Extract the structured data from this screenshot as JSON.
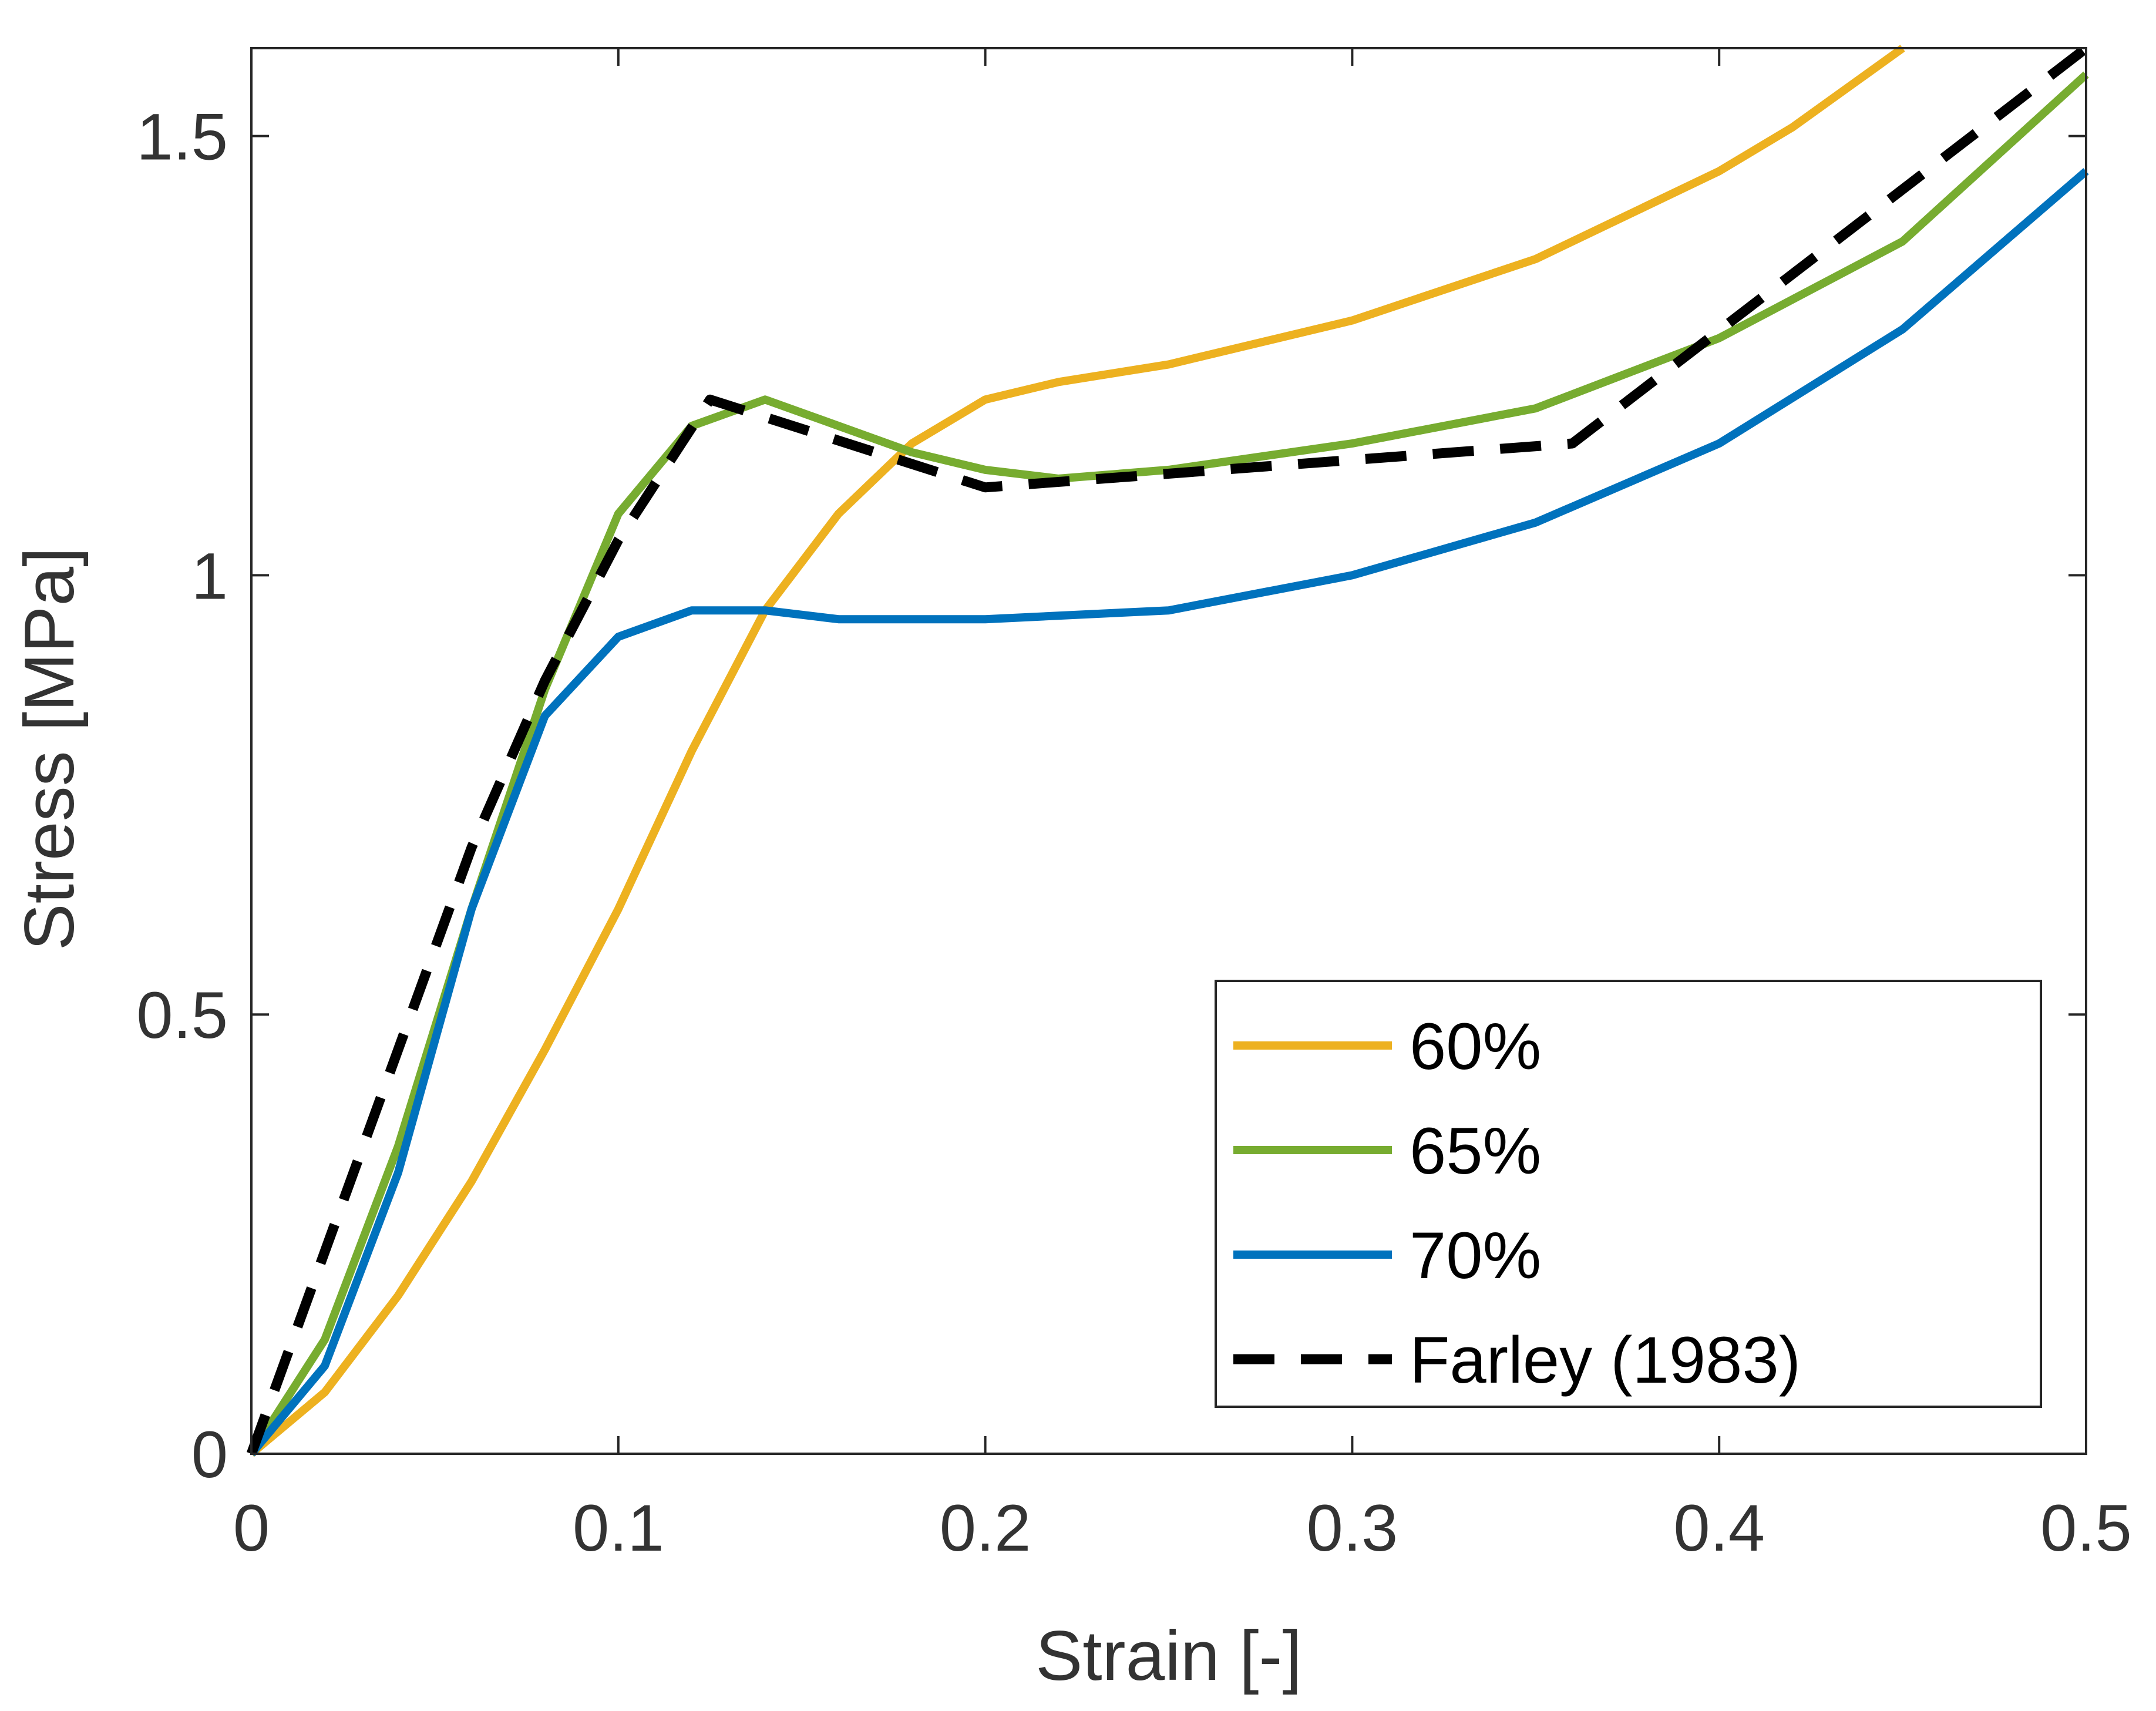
{
  "chart_data": {
    "type": "line",
    "title": "",
    "xlabel": "Strain [-]",
    "ylabel": "Stress [MPa]",
    "xlim": [
      0,
      0.5
    ],
    "ylim": [
      0,
      1.6
    ],
    "xticks": [
      0,
      0.1,
      0.2,
      0.3,
      0.4,
      0.5
    ],
    "xtick_labels": [
      "0",
      "0.1",
      "0.2",
      "0.3",
      "0.4",
      "0.5"
    ],
    "yticks": [
      0,
      0.5,
      1,
      1.5
    ],
    "ytick_labels": [
      "0",
      "0.5",
      "1",
      "1.5"
    ],
    "grid": false,
    "legend_position": "bottom-right",
    "series": [
      {
        "name": "60%",
        "color": "#EDB120",
        "style": "solid",
        "points": [
          [
            0,
            0
          ],
          [
            0.02,
            0.07
          ],
          [
            0.04,
            0.18
          ],
          [
            0.06,
            0.31
          ],
          [
            0.08,
            0.46
          ],
          [
            0.1,
            0.62
          ],
          [
            0.12,
            0.8
          ],
          [
            0.14,
            0.96
          ],
          [
            0.16,
            1.07
          ],
          [
            0.18,
            1.15
          ],
          [
            0.2,
            1.2
          ],
          [
            0.22,
            1.22
          ],
          [
            0.25,
            1.24
          ],
          [
            0.3,
            1.29
          ],
          [
            0.35,
            1.36
          ],
          [
            0.4,
            1.46
          ],
          [
            0.42,
            1.51
          ],
          [
            0.45,
            1.6
          ]
        ]
      },
      {
        "name": "65%",
        "color": "#77AC30",
        "style": "solid",
        "points": [
          [
            0,
            0
          ],
          [
            0.02,
            0.13
          ],
          [
            0.04,
            0.35
          ],
          [
            0.06,
            0.62
          ],
          [
            0.08,
            0.87
          ],
          [
            0.1,
            1.07
          ],
          [
            0.12,
            1.17
          ],
          [
            0.14,
            1.2
          ],
          [
            0.16,
            1.17
          ],
          [
            0.18,
            1.14
          ],
          [
            0.2,
            1.12
          ],
          [
            0.22,
            1.11
          ],
          [
            0.25,
            1.12
          ],
          [
            0.3,
            1.15
          ],
          [
            0.35,
            1.19
          ],
          [
            0.4,
            1.27
          ],
          [
            0.45,
            1.38
          ],
          [
            0.5,
            1.57
          ]
        ]
      },
      {
        "name": "70%",
        "color": "#0072BD",
        "style": "solid",
        "points": [
          [
            0,
            0
          ],
          [
            0.02,
            0.1
          ],
          [
            0.04,
            0.32
          ],
          [
            0.06,
            0.62
          ],
          [
            0.08,
            0.84
          ],
          [
            0.1,
            0.93
          ],
          [
            0.12,
            0.96
          ],
          [
            0.14,
            0.96
          ],
          [
            0.16,
            0.95
          ],
          [
            0.2,
            0.95
          ],
          [
            0.25,
            0.96
          ],
          [
            0.3,
            1.0
          ],
          [
            0.35,
            1.06
          ],
          [
            0.4,
            1.15
          ],
          [
            0.45,
            1.28
          ],
          [
            0.5,
            1.46
          ]
        ]
      },
      {
        "name": "Farley (1983)",
        "color": "#000000",
        "style": "dashed",
        "points": [
          [
            0,
            0
          ],
          [
            0.02,
            0.23
          ],
          [
            0.04,
            0.46
          ],
          [
            0.06,
            0.69
          ],
          [
            0.08,
            0.88
          ],
          [
            0.1,
            1.04
          ],
          [
            0.125,
            1.2
          ],
          [
            0.2,
            1.1
          ],
          [
            0.36,
            1.15
          ],
          [
            0.5,
            1.6
          ]
        ]
      }
    ]
  }
}
